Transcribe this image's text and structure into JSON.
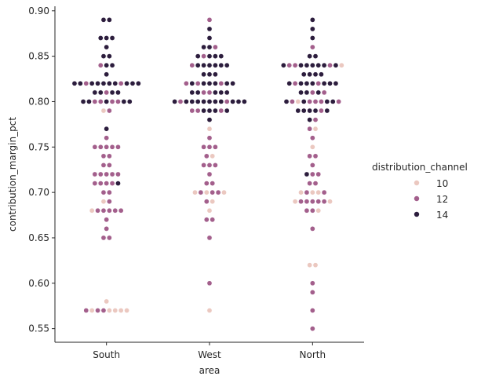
{
  "chart_data": {
    "type": "swarm",
    "title": "",
    "xlabel": "area",
    "ylabel": "contribution_margin_pct",
    "categories": [
      "South",
      "West",
      "North"
    ],
    "ylim": [
      0.535,
      0.905
    ],
    "yticks": [
      0.55,
      0.6,
      0.65,
      0.7,
      0.75,
      0.8,
      0.85,
      0.9
    ],
    "ytick_labels": [
      "0.55",
      "0.60",
      "0.65",
      "0.70",
      "0.75",
      "0.80",
      "0.85",
      "0.90"
    ],
    "grid": false,
    "legend": {
      "title": "distribution_channel",
      "placement": "right",
      "entries": [
        {
          "label": "10",
          "color": "#ebc8c0"
        },
        {
          "label": "12",
          "color": "#a35f8c"
        },
        {
          "label": "14",
          "color": "#2c1d3d"
        }
      ]
    },
    "hue_levels": [
      10,
      12,
      14
    ],
    "series": [
      {
        "category": "South",
        "points": [
          [
            0.89,
            14
          ],
          [
            0.89,
            14
          ],
          [
            0.87,
            14
          ],
          [
            0.87,
            14
          ],
          [
            0.87,
            14
          ],
          [
            0.86,
            14
          ],
          [
            0.85,
            14
          ],
          [
            0.85,
            14
          ],
          [
            0.84,
            12
          ],
          [
            0.84,
            14
          ],
          [
            0.84,
            14
          ],
          [
            0.83,
            14
          ],
          [
            0.82,
            14
          ],
          [
            0.82,
            14
          ],
          [
            0.82,
            12
          ],
          [
            0.82,
            14
          ],
          [
            0.82,
            14
          ],
          [
            0.82,
            14
          ],
          [
            0.82,
            14
          ],
          [
            0.82,
            14
          ],
          [
            0.82,
            12
          ],
          [
            0.82,
            14
          ],
          [
            0.82,
            14
          ],
          [
            0.82,
            14
          ],
          [
            0.81,
            14
          ],
          [
            0.81,
            14
          ],
          [
            0.81,
            12
          ],
          [
            0.81,
            14
          ],
          [
            0.81,
            14
          ],
          [
            0.8,
            14
          ],
          [
            0.8,
            14
          ],
          [
            0.8,
            12
          ],
          [
            0.8,
            12
          ],
          [
            0.8,
            14
          ],
          [
            0.8,
            12
          ],
          [
            0.8,
            12
          ],
          [
            0.8,
            14
          ],
          [
            0.8,
            14
          ],
          [
            0.79,
            10
          ],
          [
            0.79,
            12
          ],
          [
            0.77,
            14
          ],
          [
            0.76,
            12
          ],
          [
            0.75,
            12
          ],
          [
            0.75,
            12
          ],
          [
            0.75,
            12
          ],
          [
            0.75,
            12
          ],
          [
            0.75,
            12
          ],
          [
            0.74,
            12
          ],
          [
            0.74,
            12
          ],
          [
            0.73,
            12
          ],
          [
            0.73,
            12
          ],
          [
            0.72,
            12
          ],
          [
            0.72,
            12
          ],
          [
            0.72,
            12
          ],
          [
            0.72,
            12
          ],
          [
            0.72,
            12
          ],
          [
            0.71,
            12
          ],
          [
            0.71,
            12
          ],
          [
            0.71,
            12
          ],
          [
            0.71,
            12
          ],
          [
            0.71,
            14
          ],
          [
            0.7,
            12
          ],
          [
            0.7,
            12
          ],
          [
            0.69,
            10
          ],
          [
            0.69,
            12
          ],
          [
            0.68,
            10
          ],
          [
            0.68,
            12
          ],
          [
            0.68,
            12
          ],
          [
            0.68,
            12
          ],
          [
            0.68,
            12
          ],
          [
            0.68,
            12
          ],
          [
            0.67,
            12
          ],
          [
            0.66,
            12
          ],
          [
            0.65,
            12
          ],
          [
            0.65,
            12
          ],
          [
            0.58,
            10
          ],
          [
            0.57,
            12
          ],
          [
            0.57,
            10
          ],
          [
            0.57,
            12
          ],
          [
            0.57,
            12
          ],
          [
            0.57,
            10
          ],
          [
            0.57,
            10
          ],
          [
            0.57,
            10
          ],
          [
            0.57,
            10
          ]
        ]
      },
      {
        "category": "West",
        "points": [
          [
            0.89,
            12
          ],
          [
            0.88,
            14
          ],
          [
            0.87,
            14
          ],
          [
            0.86,
            14
          ],
          [
            0.86,
            14
          ],
          [
            0.86,
            12
          ],
          [
            0.85,
            14
          ],
          [
            0.85,
            12
          ],
          [
            0.85,
            14
          ],
          [
            0.85,
            14
          ],
          [
            0.85,
            14
          ],
          [
            0.84,
            12
          ],
          [
            0.84,
            14
          ],
          [
            0.84,
            14
          ],
          [
            0.84,
            14
          ],
          [
            0.84,
            14
          ],
          [
            0.84,
            14
          ],
          [
            0.84,
            14
          ],
          [
            0.83,
            14
          ],
          [
            0.83,
            14
          ],
          [
            0.83,
            14
          ],
          [
            0.82,
            12
          ],
          [
            0.82,
            14
          ],
          [
            0.82,
            12
          ],
          [
            0.82,
            14
          ],
          [
            0.82,
            14
          ],
          [
            0.82,
            14
          ],
          [
            0.82,
            12
          ],
          [
            0.82,
            14
          ],
          [
            0.82,
            14
          ],
          [
            0.81,
            14
          ],
          [
            0.81,
            14
          ],
          [
            0.81,
            12
          ],
          [
            0.81,
            12
          ],
          [
            0.81,
            14
          ],
          [
            0.81,
            14
          ],
          [
            0.81,
            14
          ],
          [
            0.8,
            14
          ],
          [
            0.8,
            12
          ],
          [
            0.8,
            14
          ],
          [
            0.8,
            14
          ],
          [
            0.8,
            14
          ],
          [
            0.8,
            14
          ],
          [
            0.8,
            14
          ],
          [
            0.8,
            14
          ],
          [
            0.8,
            14
          ],
          [
            0.8,
            12
          ],
          [
            0.8,
            14
          ],
          [
            0.8,
            14
          ],
          [
            0.8,
            14
          ],
          [
            0.79,
            12
          ],
          [
            0.79,
            12
          ],
          [
            0.79,
            14
          ],
          [
            0.79,
            14
          ],
          [
            0.79,
            14
          ],
          [
            0.79,
            12
          ],
          [
            0.79,
            14
          ],
          [
            0.78,
            14
          ],
          [
            0.77,
            10
          ],
          [
            0.76,
            12
          ],
          [
            0.75,
            12
          ],
          [
            0.75,
            12
          ],
          [
            0.75,
            12
          ],
          [
            0.74,
            12
          ],
          [
            0.74,
            10
          ],
          [
            0.73,
            12
          ],
          [
            0.73,
            12
          ],
          [
            0.73,
            12
          ],
          [
            0.72,
            12
          ],
          [
            0.71,
            12
          ],
          [
            0.71,
            12
          ],
          [
            0.7,
            10
          ],
          [
            0.7,
            12
          ],
          [
            0.7,
            10
          ],
          [
            0.7,
            12
          ],
          [
            0.7,
            12
          ],
          [
            0.7,
            10
          ],
          [
            0.69,
            12
          ],
          [
            0.69,
            10
          ],
          [
            0.68,
            10
          ],
          [
            0.67,
            12
          ],
          [
            0.67,
            12
          ],
          [
            0.65,
            12
          ],
          [
            0.6,
            12
          ],
          [
            0.57,
            10
          ]
        ]
      },
      {
        "category": "North",
        "points": [
          [
            0.89,
            14
          ],
          [
            0.88,
            14
          ],
          [
            0.87,
            14
          ],
          [
            0.86,
            12
          ],
          [
            0.85,
            14
          ],
          [
            0.85,
            14
          ],
          [
            0.84,
            14
          ],
          [
            0.84,
            12
          ],
          [
            0.84,
            12
          ],
          [
            0.84,
            14
          ],
          [
            0.84,
            14
          ],
          [
            0.84,
            14
          ],
          [
            0.84,
            14
          ],
          [
            0.84,
            14
          ],
          [
            0.84,
            12
          ],
          [
            0.84,
            14
          ],
          [
            0.84,
            10
          ],
          [
            0.83,
            14
          ],
          [
            0.83,
            14
          ],
          [
            0.83,
            14
          ],
          [
            0.83,
            14
          ],
          [
            0.82,
            14
          ],
          [
            0.82,
            12
          ],
          [
            0.82,
            14
          ],
          [
            0.82,
            14
          ],
          [
            0.82,
            14
          ],
          [
            0.82,
            12
          ],
          [
            0.82,
            14
          ],
          [
            0.82,
            14
          ],
          [
            0.82,
            14
          ],
          [
            0.81,
            14
          ],
          [
            0.81,
            14
          ],
          [
            0.81,
            12
          ],
          [
            0.81,
            14
          ],
          [
            0.81,
            12
          ],
          [
            0.8,
            14
          ],
          [
            0.8,
            12
          ],
          [
            0.8,
            10
          ],
          [
            0.8,
            14
          ],
          [
            0.8,
            12
          ],
          [
            0.8,
            12
          ],
          [
            0.8,
            12
          ],
          [
            0.8,
            14
          ],
          [
            0.8,
            14
          ],
          [
            0.8,
            12
          ],
          [
            0.79,
            14
          ],
          [
            0.79,
            14
          ],
          [
            0.79,
            14
          ],
          [
            0.79,
            14
          ],
          [
            0.79,
            12
          ],
          [
            0.79,
            14
          ],
          [
            0.78,
            14
          ],
          [
            0.78,
            12
          ],
          [
            0.77,
            12
          ],
          [
            0.77,
            10
          ],
          [
            0.76,
            12
          ],
          [
            0.75,
            10
          ],
          [
            0.74,
            12
          ],
          [
            0.74,
            12
          ],
          [
            0.73,
            12
          ],
          [
            0.72,
            14
          ],
          [
            0.72,
            12
          ],
          [
            0.72,
            12
          ],
          [
            0.71,
            12
          ],
          [
            0.71,
            12
          ],
          [
            0.7,
            10
          ],
          [
            0.7,
            12
          ],
          [
            0.7,
            10
          ],
          [
            0.7,
            10
          ],
          [
            0.7,
            12
          ],
          [
            0.69,
            10
          ],
          [
            0.69,
            12
          ],
          [
            0.69,
            12
          ],
          [
            0.69,
            12
          ],
          [
            0.69,
            12
          ],
          [
            0.69,
            12
          ],
          [
            0.69,
            10
          ],
          [
            0.68,
            12
          ],
          [
            0.68,
            12
          ],
          [
            0.68,
            10
          ],
          [
            0.66,
            12
          ],
          [
            0.62,
            10
          ],
          [
            0.62,
            10
          ],
          [
            0.6,
            12
          ],
          [
            0.59,
            12
          ],
          [
            0.57,
            12
          ],
          [
            0.55,
            12
          ]
        ]
      }
    ]
  }
}
